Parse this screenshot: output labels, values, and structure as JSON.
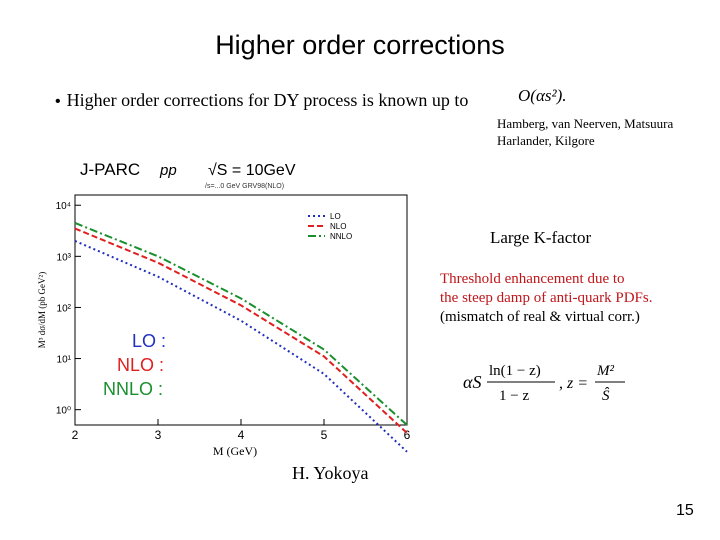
{
  "slide": {
    "title": "Higher order corrections",
    "bullet": "Higher order corrections for DY process is known up to",
    "bullet_formula": "O(αs²).",
    "refs": [
      "Hamberg, van Neerven, Matsuura",
      "Harlander, Kilgore"
    ],
    "kfactor": "Large K-factor",
    "threshold": [
      "Threshold enhancement due to",
      "the steep damp of anti-quark PDFs.",
      "(mismatch of real & virtual corr.)"
    ],
    "formula": {
      "lhs_num": "ln(1 − z)",
      "lhs_den": "1 − z",
      "alpha": "αS",
      "z": "z =",
      "rhs_num": "M²",
      "rhs_den": "Ŝ"
    },
    "author": "H. Yokoya",
    "page": "15"
  },
  "plot": {
    "header": {
      "experiment": "J-PARC",
      "process": "pp",
      "sqrt": "√S = 10GeV",
      "sub": "/s=...0 GeV GRV98(NLO)"
    },
    "legend": [
      "LO",
      "NLO",
      "NNLO"
    ],
    "big_labels": [
      "LO :",
      "NLO :",
      "NNLO :"
    ],
    "colors": {
      "LO": "#1f2fbf",
      "NLO": "#e01f1f",
      "NNLO": "#1a8f2e"
    }
  },
  "chart_data": {
    "type": "line",
    "xlabel": "M (GeV)",
    "ylabel": "M³ dσ/dM (pb GeV²)",
    "xlim": [
      2,
      6
    ],
    "ylim_log10": [
      -0.3,
      4.2
    ],
    "log_y": true,
    "x_ticks": [
      "2",
      "3",
      "4",
      "5",
      "6"
    ],
    "y_ticks": [
      "10⁰",
      "10¹",
      "10²",
      "10³",
      "10⁴"
    ],
    "series": [
      {
        "name": "LO",
        "x": [
          2,
          3,
          4,
          5,
          6
        ],
        "y": [
          2000,
          400,
          55,
          5,
          0.15
        ]
      },
      {
        "name": "NLO",
        "x": [
          2,
          3,
          4,
          5,
          6
        ],
        "y": [
          3500,
          750,
          110,
          11,
          0.35
        ]
      },
      {
        "name": "NNLO",
        "x": [
          2,
          3,
          4,
          5,
          6
        ],
        "y": [
          4500,
          1000,
          150,
          15,
          0.5
        ]
      }
    ]
  }
}
